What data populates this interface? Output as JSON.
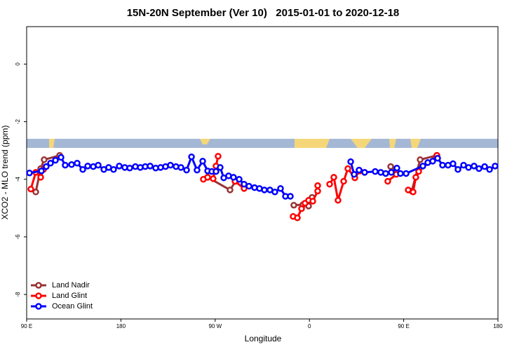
{
  "chart_data": {
    "type": "line",
    "title": "15N-20N September (Ver 10)   2015-01-01 to 2020-12-18",
    "x_label": "Longitude",
    "y_label": "XCO2 - MLO trend (ppm)",
    "xlim": [
      90,
      540
    ],
    "xticks": [
      {
        "value": 90,
        "label": "90 E"
      },
      180,
      {
        "value": 270,
        "label": "90 W"
      },
      {
        "value": 360,
        "label": "0"
      },
      {
        "value": 450,
        "label": "90 E"
      },
      {
        "value": 540,
        "label": "180"
      }
    ],
    "ylim": [
      -8.85,
      1.3
    ],
    "yticks": [
      0,
      -2,
      -4,
      -6,
      -8
    ],
    "legend": "bottom-left",
    "series": [
      {
        "name": "Land Nadir",
        "color": "#993333",
        "x": [
          98.7,
          103.4,
          106.7,
          121.5,
          null,
          262.8,
          284.2,
          289.5,
          null,
          345.1,
          353.9,
          359.2,
          362.5,
          null,
          437.6,
          442.9,
          null,
          457.7,
          465.7,
          481.7
        ],
        "values": [
          -4.44,
          -3.63,
          -3.32,
          -3.17,
          null,
          -3.93,
          -4.37,
          -4.07,
          null,
          -4.9,
          -4.88,
          -4.93,
          -4.63,
          null,
          -3.56,
          -3.63,
          null,
          -4.41,
          -3.32,
          -3.17
        ]
      },
      {
        "name": "Land Glint",
        "color": "#ff0000",
        "x": [
          94.0,
          98.7,
          103.4,
          106.1,
          null,
          258.7,
          262.8,
          268.1,
          270.8,
          272.8,
          null,
          288.9,
          297.6,
          null,
          344.4,
          348.5,
          352.5,
          355.8,
          359.2,
          363.2,
          367.9,
          367.9,
          null,
          379.3,
          383.3,
          387.3,
          392.7,
          396.7,
          403.4,
          408.0,
          412.7,
          null,
          434.8,
          442.9,
          null,
          454.3,
          459.0,
          461.6,
          464.3,
          481.7
        ],
        "values": [
          -4.34,
          -3.76,
          -3.93,
          -3.66,
          null,
          -4.0,
          -3.93,
          -3.98,
          -3.54,
          -3.2,
          null,
          -4.07,
          -4.32,
          null,
          -5.29,
          -5.34,
          -5.02,
          -4.83,
          -4.73,
          -4.76,
          -4.41,
          -4.22,
          null,
          -4.17,
          -3.93,
          -4.73,
          -4.07,
          -3.63,
          -3.95,
          -3.71,
          -3.76,
          null,
          -4.07,
          -3.83,
          null,
          -4.37,
          -4.44,
          -3.93,
          -3.73,
          -3.17
        ]
      },
      {
        "name": "Ocean Glint",
        "color": "#0000ff",
        "x": [
          92.7,
          104.1,
          108.7,
          112.8,
          117.5,
          122.8,
          126.8,
          132.9,
          138.2,
          143.6,
          148.3,
          153.6,
          158.3,
          163.7,
          168.3,
          173.0,
          178.4,
          183.7,
          188.4,
          193.8,
          198.5,
          203.2,
          207.9,
          213.2,
          217.9,
          222.6,
          227.3,
          232.6,
          237.3,
          242.7,
          247.4,
          252.7,
          258.1,
          262.8,
          266.8,
          270.8,
          274.8,
          278.2,
          282.8,
          287.5,
          292.9,
          297.6,
          302.3,
          307.6,
          312.3,
          317.0,
          322.3,
          327.0,
          332.4,
          337.1,
          341.8,
          null,
          399.4,
          402.7,
          407.4,
          412.7,
          422.8,
          428.1,
          432.8,
          438.2,
          443.5,
          446.9,
          452.3,
          468.3,
          473.0,
          477.7,
          482.4,
          487.1,
          492.4,
          497.1,
          501.8,
          507.2,
          511.9,
          517.2,
          521.9,
          527.3,
          532.0,
          537.3
        ],
        "values": [
          -3.78,
          -3.71,
          -3.56,
          -3.44,
          -3.34,
          -3.24,
          -3.51,
          -3.49,
          -3.44,
          -3.66,
          -3.54,
          -3.56,
          -3.51,
          -3.66,
          -3.59,
          -3.66,
          -3.54,
          -3.59,
          -3.61,
          -3.56,
          -3.59,
          -3.56,
          -3.54,
          -3.61,
          -3.59,
          -3.56,
          -3.51,
          -3.56,
          -3.59,
          -3.68,
          -3.22,
          -3.68,
          -3.37,
          -3.71,
          -3.73,
          -3.73,
          -3.59,
          -3.95,
          -3.88,
          -3.93,
          -4.0,
          -4.17,
          -4.24,
          -4.29,
          -4.32,
          -4.37,
          -4.37,
          -4.44,
          -4.32,
          -4.59,
          -4.59,
          null,
          -3.39,
          -3.83,
          -3.68,
          -3.76,
          -3.73,
          -3.76,
          -3.8,
          -3.76,
          -3.61,
          -3.8,
          -3.8,
          -3.54,
          -3.42,
          -3.37,
          -3.27,
          -3.51,
          -3.51,
          -3.46,
          -3.66,
          -3.51,
          -3.59,
          -3.54,
          -3.63,
          -3.56,
          -3.66,
          -3.54
        ]
      }
    ]
  }
}
